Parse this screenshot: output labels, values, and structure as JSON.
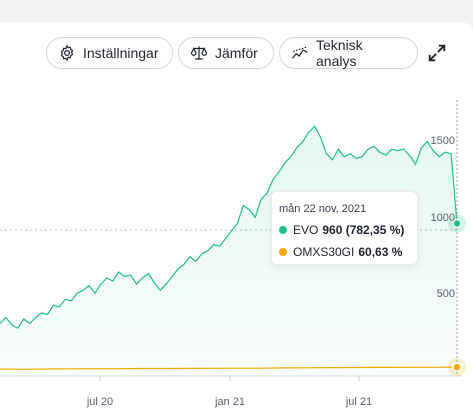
{
  "toolbar": {
    "settings_label": "Inställningar",
    "compare_label": "Jämför",
    "technical_label": "Teknisk analys",
    "settings_icon": "gear-icon",
    "compare_icon": "scales-icon",
    "technical_icon": "trend-line-icon",
    "expand_icon": "expand-icon"
  },
  "tooltip": {
    "date": "mån 22 nov, 2021",
    "series": [
      {
        "name": "EVO",
        "value": "960 (782,35 %)",
        "color": "#1fbf87"
      },
      {
        "name": "OMXS30GI",
        "value": "60,63 %",
        "color": "#f5a800"
      }
    ]
  },
  "chart_data": {
    "type": "line",
    "x_ticks": [
      "jul 20",
      "jan 21",
      "jul 21"
    ],
    "y_ticks": [
      "500",
      "1000",
      "1500"
    ],
    "ylim": [
      0,
      1800
    ],
    "series": [
      {
        "name": "EVO",
        "color": "#1fbf87",
        "points": [
          [
            0,
            300
          ],
          [
            1,
            340
          ],
          [
            2,
            290
          ],
          [
            3,
            270
          ],
          [
            4,
            330
          ],
          [
            5,
            300
          ],
          [
            6,
            340
          ],
          [
            7,
            370
          ],
          [
            8,
            360
          ],
          [
            9,
            420
          ],
          [
            10,
            410
          ],
          [
            11,
            460
          ],
          [
            12,
            450
          ],
          [
            13,
            500
          ],
          [
            14,
            520
          ],
          [
            15,
            550
          ],
          [
            16,
            500
          ],
          [
            17,
            560
          ],
          [
            18,
            600
          ],
          [
            19,
            580
          ],
          [
            20,
            640
          ],
          [
            21,
            610
          ],
          [
            22,
            620
          ],
          [
            23,
            560
          ],
          [
            24,
            600
          ],
          [
            25,
            630
          ],
          [
            26,
            570
          ],
          [
            27,
            520
          ],
          [
            28,
            560
          ],
          [
            29,
            610
          ],
          [
            30,
            660
          ],
          [
            31,
            690
          ],
          [
            32,
            740
          ],
          [
            33,
            710
          ],
          [
            34,
            760
          ],
          [
            35,
            780
          ],
          [
            36,
            820
          ],
          [
            37,
            810
          ],
          [
            38,
            860
          ],
          [
            39,
            910
          ],
          [
            40,
            960
          ],
          [
            41,
            1080
          ],
          [
            42,
            1050
          ],
          [
            43,
            1000
          ],
          [
            44,
            1120
          ],
          [
            45,
            1160
          ],
          [
            46,
            1250
          ],
          [
            47,
            1300
          ],
          [
            48,
            1360
          ],
          [
            49,
            1400
          ],
          [
            50,
            1460
          ],
          [
            51,
            1500
          ],
          [
            52,
            1560
          ],
          [
            53,
            1600
          ],
          [
            54,
            1530
          ],
          [
            55,
            1420
          ],
          [
            56,
            1380
          ],
          [
            57,
            1450
          ],
          [
            58,
            1400
          ],
          [
            59,
            1420
          ],
          [
            60,
            1390
          ],
          [
            61,
            1400
          ],
          [
            62,
            1450
          ],
          [
            63,
            1470
          ],
          [
            64,
            1430
          ],
          [
            65,
            1410
          ],
          [
            66,
            1450
          ],
          [
            67,
            1440
          ],
          [
            68,
            1450
          ],
          [
            69,
            1410
          ],
          [
            70,
            1350
          ],
          [
            71,
            1460
          ],
          [
            72,
            1500
          ],
          [
            73,
            1440
          ],
          [
            74,
            1400
          ],
          [
            75,
            1430
          ],
          [
            76,
            1420
          ],
          [
            77,
            960
          ]
        ]
      },
      {
        "name": "OMXS30GI",
        "color": "#f5a800",
        "points": [
          [
            0,
            0
          ],
          [
            4,
            -10
          ],
          [
            8,
            0
          ],
          [
            12,
            5
          ],
          [
            16,
            10
          ],
          [
            20,
            10
          ],
          [
            24,
            15
          ],
          [
            28,
            15
          ],
          [
            32,
            20
          ],
          [
            36,
            22
          ],
          [
            40,
            25
          ],
          [
            44,
            28
          ],
          [
            48,
            35
          ],
          [
            52,
            40
          ],
          [
            56,
            45
          ],
          [
            60,
            48
          ],
          [
            64,
            52
          ],
          [
            68,
            55
          ],
          [
            72,
            55
          ],
          [
            77,
            60.63
          ]
        ]
      }
    ]
  }
}
